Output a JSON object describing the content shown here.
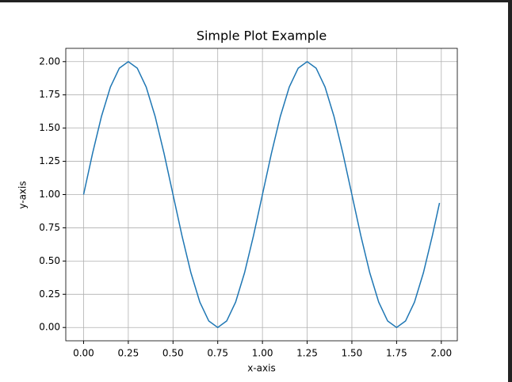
{
  "chart_data": {
    "type": "line",
    "title": "Simple Plot Example",
    "x_label": "x-axis",
    "y_label": "y-axis",
    "x": [
      0,
      0.05,
      0.1,
      0.15,
      0.2,
      0.25,
      0.3,
      0.35,
      0.4,
      0.45,
      0.5,
      0.55,
      0.6,
      0.65,
      0.7,
      0.75,
      0.8,
      0.85,
      0.9,
      0.95,
      1,
      1.05,
      1.1,
      1.15,
      1.2,
      1.25,
      1.3,
      1.35,
      1.4,
      1.45,
      1.5,
      1.55,
      1.6,
      1.65,
      1.7,
      1.75,
      1.8,
      1.85,
      1.9,
      1.95,
      1.99
    ],
    "series": [
      {
        "color": "#1f77b4",
        "values": [
          1,
          1.309,
          1.588,
          1.809,
          1.951,
          2,
          1.951,
          1.809,
          1.588,
          1.309,
          1,
          0.691,
          0.412,
          0.191,
          0.049,
          0,
          0.049,
          0.191,
          0.412,
          0.691,
          1,
          1.309,
          1.588,
          1.809,
          1.951,
          2,
          1.951,
          1.809,
          1.588,
          1.309,
          1,
          0.691,
          0.412,
          0.191,
          0.049,
          0,
          0.049,
          0.191,
          0.412,
          0.691,
          0.937
        ]
      }
    ],
    "xlim": [
      -0.0995,
      2.0895
    ],
    "ylim": [
      -0.1,
      2.1
    ],
    "xticks": [
      {
        "value": 0,
        "label": "0.00"
      },
      {
        "value": 0.25,
        "label": "0.25"
      },
      {
        "value": 0.5,
        "label": "0.50"
      },
      {
        "value": 0.75,
        "label": "0.75"
      },
      {
        "value": 1,
        "label": "1.00"
      },
      {
        "value": 1.25,
        "label": "1.25"
      },
      {
        "value": 1.5,
        "label": "1.50"
      },
      {
        "value": 1.75,
        "label": "1.75"
      },
      {
        "value": 2,
        "label": "2.00"
      }
    ],
    "yticks": [
      {
        "value": 0,
        "label": "0.00"
      },
      {
        "value": 0.25,
        "label": "0.25"
      },
      {
        "value": 0.5,
        "label": "0.50"
      },
      {
        "value": 0.75,
        "label": "0.75"
      },
      {
        "value": 1,
        "label": "1.00"
      },
      {
        "value": 1.25,
        "label": "1.25"
      },
      {
        "value": 1.5,
        "label": "1.50"
      },
      {
        "value": 1.75,
        "label": "1.75"
      },
      {
        "value": 2,
        "label": "2.00"
      }
    ],
    "grid": true
  }
}
